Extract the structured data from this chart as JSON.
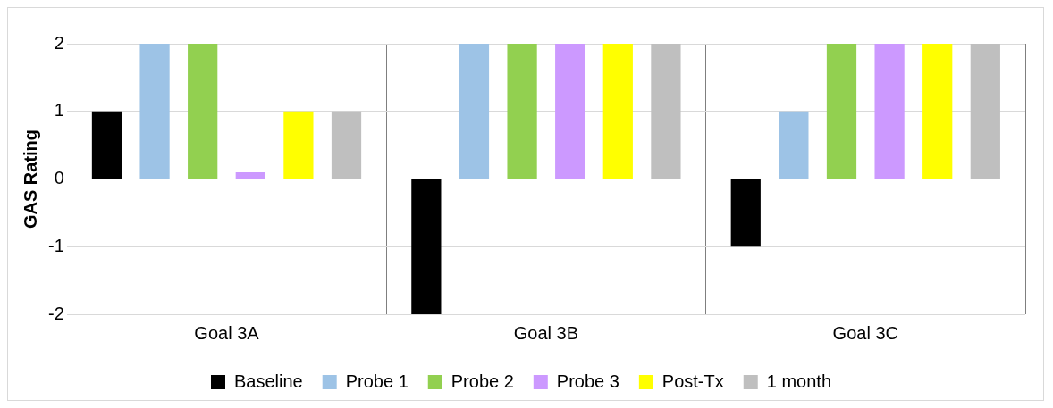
{
  "chart_data": {
    "type": "bar",
    "ylabel": "GAS Rating",
    "categories": [
      "Goal 3A",
      "Goal 3B",
      "Goal 3C"
    ],
    "series": [
      {
        "name": "Baseline",
        "color": "#000000",
        "values": [
          1,
          -2,
          -1
        ]
      },
      {
        "name": "Probe 1",
        "color": "#9dc3e6",
        "values": [
          2,
          2,
          1
        ]
      },
      {
        "name": "Probe 2",
        "color": "#92d050",
        "values": [
          2,
          2,
          2
        ]
      },
      {
        "name": "Probe 3",
        "color": "#cc99ff",
        "values": [
          0.1,
          2,
          2
        ]
      },
      {
        "name": "Post-Tx",
        "color": "#ffff00",
        "values": [
          1,
          2,
          2
        ]
      },
      {
        "name": "1 month",
        "color": "#bfbfbf",
        "values": [
          1,
          2,
          2
        ]
      }
    ],
    "ylim": [
      -2,
      2
    ],
    "yticks": [
      -2,
      -1,
      0,
      1,
      2
    ],
    "grid": true,
    "legend": "bottom"
  }
}
